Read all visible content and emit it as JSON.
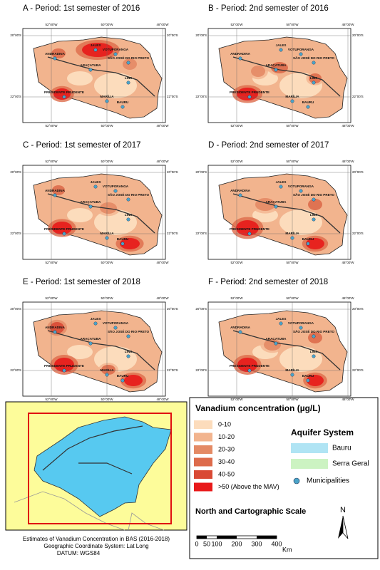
{
  "panels": [
    {
      "title": "A - Period: 1st semester of 2016"
    },
    {
      "title": "B - Period: 2nd semester of 2016"
    },
    {
      "title": "C - Period: 1st semester of 2017"
    },
    {
      "title": "D - Period: 2nd semester of 2017"
    },
    {
      "title": "E - Period: 1st semester of 2018"
    },
    {
      "title": "F - Period: 2nd semester of 2018"
    }
  ],
  "coordinates": {
    "longitudes": [
      "52°00'W",
      "50°00'W",
      "48°00'W"
    ],
    "latitudes": [
      "20°00'S",
      "22°00'S"
    ]
  },
  "cities": [
    "JALES",
    "VOTUPORANGA",
    "ANDRADINA",
    "SÃO JOSÉ DO RIO PRETO",
    "ARAÇATUBA",
    "LINS",
    "PRESIDENTE PRUDENTE",
    "MARÍLIA",
    "BAURU"
  ],
  "legend": {
    "title": "Vanadium concentration (µg/L)",
    "classes": [
      {
        "label": "0-10",
        "color": "#fcdcbc"
      },
      {
        "label": "10-20",
        "color": "#f2b48e"
      },
      {
        "label": "20-30",
        "color": "#e48a65"
      },
      {
        "label": "30-40",
        "color": "#dd6b4b"
      },
      {
        "label": "40-50",
        "color": "#d94a35"
      },
      {
        "label": ">50 (Above the MAV)",
        "color": "#e8191a"
      }
    ],
    "aquifer_title": "Aquifer System",
    "aquifers": [
      {
        "label": "Bauru",
        "color": "#b0e4f4"
      },
      {
        "label": "Serra Geral",
        "color": "#ccf3c2"
      }
    ],
    "municipalities": "Municipalities",
    "scale_title": "North and Cartographic Scale",
    "north": "N",
    "scale_labels": [
      "0",
      "50",
      "100",
      "200",
      "300",
      "400"
    ],
    "scale_unit": "Km"
  },
  "footer": [
    "Estimates of Vanadium Concentration in BAS (2016-2018)",
    "Geographic Coordinate System: Lat Long",
    "DATUM:  WGS84"
  ]
}
